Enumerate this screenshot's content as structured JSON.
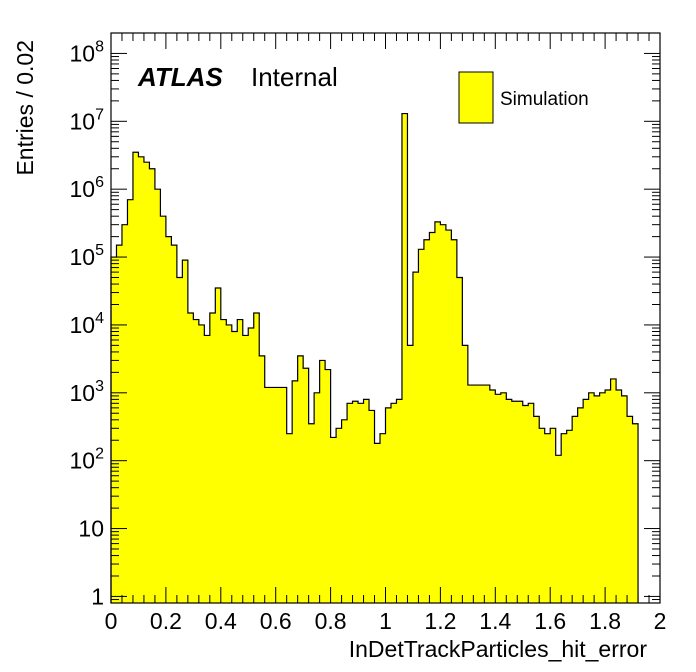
{
  "chart_data": {
    "type": "bar",
    "style": "histogram",
    "xlabel": "InDetTrackParticles_hit_error",
    "ylabel": "Entries / 0.02",
    "label_bold": "ATLAS",
    "label_status": "Internal",
    "xlim": [
      0,
      2
    ],
    "ylim": [
      0.8,
      200000000
    ],
    "yscale": "log",
    "bin_width": 0.02,
    "fill_color": "#ffff00",
    "line_color": "#000000",
    "legend": {
      "position": "top-right",
      "entries": [
        "Simulation"
      ]
    },
    "x_ticks": [
      {
        "value": 0,
        "label": "0"
      },
      {
        "value": 0.2,
        "label": "0.2"
      },
      {
        "value": 0.4,
        "label": "0.4"
      },
      {
        "value": 0.6,
        "label": "0.6"
      },
      {
        "value": 0.8,
        "label": "0.8"
      },
      {
        "value": 1,
        "label": "1"
      },
      {
        "value": 1.2,
        "label": "1.2"
      },
      {
        "value": 1.4,
        "label": "1.4"
      },
      {
        "value": 1.6,
        "label": "1.6"
      },
      {
        "value": 1.8,
        "label": "1.8"
      },
      {
        "value": 2,
        "label": "2"
      }
    ],
    "y_ticks": [
      {
        "exp": 0,
        "base": "1",
        "sup": ""
      },
      {
        "exp": 1,
        "base": "10",
        "sup": ""
      },
      {
        "exp": 2,
        "base": "10",
        "sup": "2"
      },
      {
        "exp": 3,
        "base": "10",
        "sup": "3"
      },
      {
        "exp": 4,
        "base": "10",
        "sup": "4"
      },
      {
        "exp": 5,
        "base": "10",
        "sup": "5"
      },
      {
        "exp": 6,
        "base": "10",
        "sup": "6"
      },
      {
        "exp": 7,
        "base": "10",
        "sup": "7"
      },
      {
        "exp": 8,
        "base": "10",
        "sup": "8"
      }
    ],
    "values": [
      100000,
      150000,
      300000,
      700000,
      3500000,
      3000000,
      2500000,
      2000000,
      1000000,
      400000,
      200000,
      150000,
      50000,
      90000,
      15000,
      12000,
      10000,
      7000,
      15000,
      35000,
      12000,
      10000,
      8000,
      12000,
      7000,
      9000,
      15000,
      3500,
      1200,
      1200,
      1200,
      1200,
      250,
      1500,
      3500,
      2300,
      350,
      1000,
      3000,
      2200,
      220,
      300,
      400,
      700,
      750,
      700,
      800,
      550,
      180,
      250,
      600,
      700,
      800,
      13000000,
      5000,
      60000,
      130000,
      180000,
      230000,
      330000,
      300000,
      250000,
      180000,
      50000,
      5000,
      1300,
      1300,
      1300,
      1300,
      1100,
      950,
      1000,
      800,
      750,
      750,
      650,
      700,
      450,
      300,
      250,
      300,
      120,
      250,
      280,
      450,
      600,
      800,
      1000,
      900,
      1000,
      1100,
      1600,
      1100,
      900,
      450,
      350
    ]
  }
}
